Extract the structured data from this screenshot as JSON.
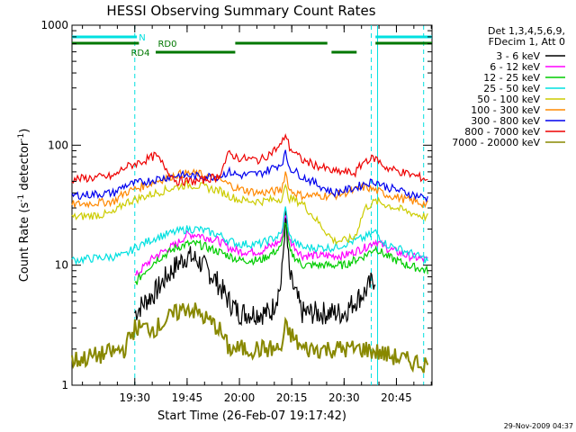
{
  "chart_data": {
    "type": "line",
    "title": "HESSI Observing Summary Count Rates",
    "xlabel": "Start Time (26-Feb-07 19:17:42)",
    "ylabel": "Count Rate (s",
    "ylabel_sup1": "-1",
    "ylabel_mid": " detector",
    "ylabel_sup2": "-1",
    "ylabel_end": ")",
    "x_range_minutes": [
      19.2,
      20.92
    ],
    "y_scale": "log",
    "ylim": [
      1,
      1000
    ],
    "x_ticks": [
      {
        "t": 19.5,
        "label": "19:30"
      },
      {
        "t": 19.75,
        "label": "19:45"
      },
      {
        "t": 20.0,
        "label": "20:00"
      },
      {
        "t": 20.25,
        "label": "20:15"
      },
      {
        "t": 20.5,
        "label": "20:30"
      },
      {
        "t": 20.75,
        "label": "20:45"
      }
    ],
    "y_ticks": [
      {
        "v": 1,
        "label": "1"
      },
      {
        "v": 10,
        "label": "10"
      },
      {
        "v": 100,
        "label": "100"
      },
      {
        "v": 1000,
        "label": "1000"
      }
    ],
    "legend_header": [
      "Det 1,3,4,5,6,9,",
      "FDecim 1, Att 0"
    ],
    "series": [
      {
        "name": "3 - 6 keV",
        "color": "#000000",
        "points": [
          [
            19.5,
            4
          ],
          [
            19.55,
            5
          ],
          [
            19.6,
            6
          ],
          [
            19.65,
            8
          ],
          [
            19.7,
            10
          ],
          [
            19.75,
            12
          ],
          [
            19.8,
            11
          ],
          [
            19.85,
            9
          ],
          [
            19.9,
            7
          ],
          [
            19.95,
            5
          ],
          [
            20.0,
            4
          ],
          [
            20.1,
            4
          ],
          [
            20.15,
            4
          ],
          [
            20.2,
            7
          ],
          [
            20.22,
            25
          ],
          [
            20.24,
            8
          ],
          [
            20.3,
            4
          ],
          [
            20.45,
            4
          ],
          [
            20.5,
            4
          ],
          [
            20.55,
            5
          ],
          [
            20.6,
            6
          ],
          [
            20.65,
            8
          ]
        ]
      },
      {
        "name": "6 - 12 keV",
        "color": "#ff00ff",
        "points": [
          [
            19.5,
            8
          ],
          [
            19.55,
            10
          ],
          [
            19.6,
            12
          ],
          [
            19.7,
            15
          ],
          [
            19.75,
            18
          ],
          [
            19.8,
            18
          ],
          [
            19.9,
            16
          ],
          [
            19.95,
            14
          ],
          [
            20.0,
            13
          ],
          [
            20.1,
            13
          ],
          [
            20.2,
            16
          ],
          [
            20.22,
            28
          ],
          [
            20.24,
            16
          ],
          [
            20.3,
            12
          ],
          [
            20.45,
            12
          ],
          [
            20.5,
            12
          ],
          [
            20.55,
            13
          ],
          [
            20.6,
            14
          ],
          [
            20.65,
            16
          ],
          [
            20.7,
            14
          ],
          [
            20.8,
            12
          ],
          [
            20.9,
            11
          ]
        ]
      },
      {
        "name": "12 - 25 keV",
        "color": "#00cc00",
        "points": [
          [
            19.5,
            7
          ],
          [
            19.55,
            9
          ],
          [
            19.6,
            11
          ],
          [
            19.7,
            14
          ],
          [
            19.75,
            15
          ],
          [
            19.8,
            15
          ],
          [
            19.9,
            13
          ],
          [
            19.95,
            12
          ],
          [
            20.0,
            11
          ],
          [
            20.1,
            11
          ],
          [
            20.2,
            14
          ],
          [
            20.22,
            24
          ],
          [
            20.24,
            13
          ],
          [
            20.3,
            10
          ],
          [
            20.45,
            10
          ],
          [
            20.5,
            10
          ],
          [
            20.55,
            11
          ],
          [
            20.6,
            12
          ],
          [
            20.65,
            14
          ],
          [
            20.7,
            12
          ],
          [
            20.8,
            10
          ],
          [
            20.9,
            9
          ]
        ]
      },
      {
        "name": "25 - 50 keV",
        "color": "#00e0e0",
        "points": [
          [
            19.2,
            11
          ],
          [
            19.45,
            12
          ],
          [
            19.5,
            14
          ],
          [
            19.6,
            17
          ],
          [
            19.7,
            19
          ],
          [
            19.75,
            20
          ],
          [
            19.8,
            20
          ],
          [
            19.9,
            18
          ],
          [
            19.95,
            16
          ],
          [
            20.0,
            15
          ],
          [
            20.1,
            15
          ],
          [
            20.2,
            18
          ],
          [
            20.22,
            30
          ],
          [
            20.24,
            17
          ],
          [
            20.3,
            14
          ],
          [
            20.45,
            14
          ],
          [
            20.5,
            15
          ],
          [
            20.55,
            16
          ],
          [
            20.6,
            17
          ],
          [
            20.65,
            19
          ],
          [
            20.7,
            15
          ],
          [
            20.8,
            13
          ],
          [
            20.9,
            11
          ]
        ]
      },
      {
        "name": "50 - 100 keV",
        "color": "#cccc00",
        "points": [
          [
            19.2,
            25
          ],
          [
            19.4,
            27
          ],
          [
            19.45,
            33
          ],
          [
            19.6,
            40
          ],
          [
            19.7,
            45
          ],
          [
            19.75,
            47
          ],
          [
            19.8,
            46
          ],
          [
            19.9,
            42
          ],
          [
            19.95,
            38
          ],
          [
            20.0,
            35
          ],
          [
            20.1,
            34
          ],
          [
            20.2,
            36
          ],
          [
            20.22,
            44
          ],
          [
            20.24,
            36
          ],
          [
            20.3,
            33
          ],
          [
            20.45,
            16
          ],
          [
            20.5,
            16
          ],
          [
            20.55,
            17
          ],
          [
            20.6,
            30
          ],
          [
            20.65,
            34
          ],
          [
            20.7,
            32
          ],
          [
            20.8,
            28
          ],
          [
            20.9,
            25
          ]
        ]
      },
      {
        "name": "100 - 300 keV",
        "color": "#ff8800",
        "points": [
          [
            19.2,
            32
          ],
          [
            19.4,
            34
          ],
          [
            19.45,
            40
          ],
          [
            19.6,
            50
          ],
          [
            19.7,
            57
          ],
          [
            19.75,
            58
          ],
          [
            19.8,
            58
          ],
          [
            19.9,
            52
          ],
          [
            19.95,
            47
          ],
          [
            20.0,
            43
          ],
          [
            20.1,
            40
          ],
          [
            20.2,
            42
          ],
          [
            20.22,
            60
          ],
          [
            20.24,
            42
          ],
          [
            20.3,
            38
          ],
          [
            20.45,
            38
          ],
          [
            20.5,
            40
          ],
          [
            20.55,
            42
          ],
          [
            20.6,
            45
          ],
          [
            20.65,
            42
          ],
          [
            20.7,
            39
          ],
          [
            20.8,
            35
          ],
          [
            20.9,
            32
          ]
        ]
      },
      {
        "name": "300 - 800 keV",
        "color": "#0000ee",
        "points": [
          [
            19.2,
            38
          ],
          [
            19.4,
            40
          ],
          [
            19.45,
            46
          ],
          [
            19.6,
            52
          ],
          [
            19.7,
            56
          ],
          [
            19.75,
            56
          ],
          [
            19.8,
            55
          ],
          [
            19.9,
            55
          ],
          [
            19.95,
            60
          ],
          [
            20.0,
            56
          ],
          [
            20.1,
            58
          ],
          [
            20.2,
            70
          ],
          [
            20.22,
            85
          ],
          [
            20.24,
            65
          ],
          [
            20.3,
            55
          ],
          [
            20.45,
            40
          ],
          [
            20.5,
            42
          ],
          [
            20.55,
            44
          ],
          [
            20.6,
            48
          ],
          [
            20.65,
            50
          ],
          [
            20.7,
            45
          ],
          [
            20.8,
            40
          ],
          [
            20.9,
            36
          ]
        ]
      },
      {
        "name": "800 - 7000 keV",
        "color": "#ee0000",
        "points": [
          [
            19.2,
            52
          ],
          [
            19.4,
            55
          ],
          [
            19.45,
            65
          ],
          [
            19.55,
            75
          ],
          [
            19.6,
            82
          ],
          [
            19.7,
            50
          ],
          [
            19.75,
            50
          ],
          [
            19.8,
            50
          ],
          [
            19.9,
            55
          ],
          [
            19.95,
            85
          ],
          [
            20.0,
            78
          ],
          [
            20.1,
            75
          ],
          [
            20.2,
            100
          ],
          [
            20.22,
            125
          ],
          [
            20.24,
            95
          ],
          [
            20.3,
            75
          ],
          [
            20.45,
            60
          ],
          [
            20.5,
            60
          ],
          [
            20.55,
            58
          ],
          [
            20.6,
            75
          ],
          [
            20.65,
            78
          ],
          [
            20.7,
            65
          ],
          [
            20.8,
            58
          ],
          [
            20.9,
            52
          ]
        ]
      },
      {
        "name": "7000 - 20000 keV",
        "color": "#888800",
        "points": [
          [
            19.2,
            1.6
          ],
          [
            19.35,
            1.8
          ],
          [
            19.45,
            2
          ],
          [
            19.5,
            3
          ],
          [
            19.6,
            3
          ],
          [
            19.7,
            4
          ],
          [
            19.75,
            4.5
          ],
          [
            19.8,
            4
          ],
          [
            19.9,
            3
          ],
          [
            19.95,
            2
          ],
          [
            20.0,
            2
          ],
          [
            20.1,
            2
          ],
          [
            20.2,
            2
          ],
          [
            20.22,
            3
          ],
          [
            20.3,
            2
          ],
          [
            20.45,
            2
          ],
          [
            20.55,
            2
          ],
          [
            20.6,
            2
          ],
          [
            20.7,
            1.8
          ],
          [
            20.8,
            1.6
          ],
          [
            20.9,
            1.5
          ]
        ]
      }
    ],
    "annotations": {
      "bars": [
        {
          "label": "N",
          "color": "#00e0e0",
          "segments": [
            [
              19.2,
              19.51
            ],
            [
              20.65,
              20.92
            ]
          ]
        },
        {
          "label": "RD0",
          "color": "#007700",
          "segments": [
            [
              19.2,
              19.52
            ],
            [
              19.98,
              20.42
            ],
            [
              20.65,
              20.92
            ]
          ]
        },
        {
          "label": "RD4",
          "color": "#007700",
          "segments": [
            [
              19.6,
              19.98
            ],
            [
              20.44,
              20.56
            ]
          ]
        }
      ],
      "vlines_solid": [
        20.66
      ],
      "vlines_dashed": [
        19.5,
        20.63,
        20.88
      ]
    },
    "footer_stamp": "29-Nov-2009 04:37"
  }
}
